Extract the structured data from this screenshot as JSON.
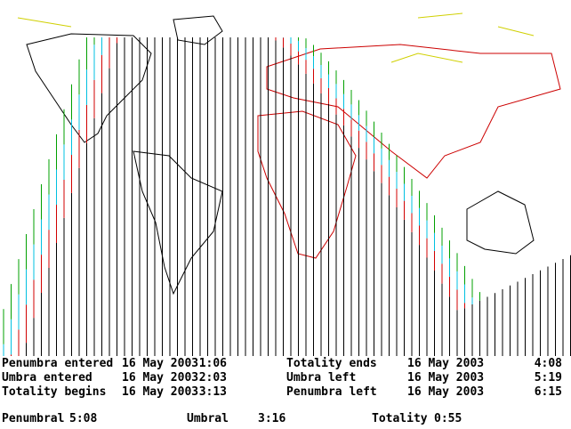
{
  "events": [
    {
      "label": "Penumbra entered",
      "date": "16 May 2003",
      "time": "1:06"
    },
    {
      "label": "Umbra entered",
      "date": "16 May 2003",
      "time": "2:03"
    },
    {
      "label": "Totality begins",
      "date": "16 May 2003",
      "time": "3:13"
    },
    {
      "label": "Totality ends",
      "date": "16 May 2003",
      "time": "4:08"
    },
    {
      "label": "Umbra left",
      "date": "16 May 2003",
      "time": "5:19"
    },
    {
      "label": "Penumbra left",
      "date": "16 May 2003",
      "time": "6:15"
    }
  ],
  "durations": [
    {
      "label": "Penumbral",
      "time": "5:08"
    },
    {
      "label": "Umbral",
      "time": "3:16"
    },
    {
      "label": "Totality",
      "time": "0:55"
    }
  ]
}
